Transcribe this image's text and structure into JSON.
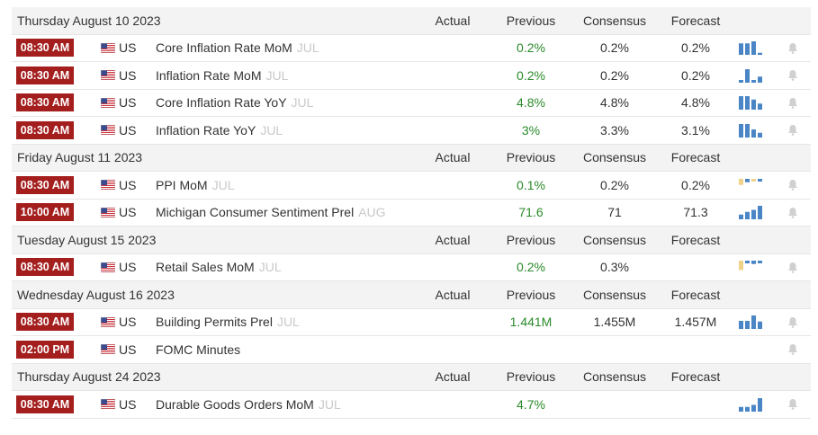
{
  "columns": {
    "actual": "Actual",
    "previous": "Previous",
    "consensus": "Consensus",
    "forecast": "Forecast"
  },
  "colors": {
    "time_badge": "#a41e1e",
    "previous_positive": "#2a8a2a",
    "bar_blue": "#4a86c5",
    "bar_yellow": "#f0d28a",
    "bell": "#d0d0d0"
  },
  "sections": [
    {
      "date": "Thursday August 10 2023",
      "events": [
        {
          "time": "08:30 AM",
          "country": "US",
          "flag_icon": "us-flag-icon",
          "name": "Core Inflation Rate MoM",
          "period": "JUL",
          "actual": "",
          "previous": "0.2%",
          "previous_colored": true,
          "consensus": "0.2%",
          "forecast": "0.2%",
          "spark": [
            {
              "v": 0.85,
              "c": "blue"
            },
            {
              "v": 0.85,
              "c": "blue"
            },
            {
              "v": 1.0,
              "c": "blue"
            },
            {
              "v": 0.15,
              "c": "blue"
            }
          ]
        },
        {
          "time": "08:30 AM",
          "country": "US",
          "flag_icon": "us-flag-icon",
          "name": "Inflation Rate MoM",
          "period": "JUL",
          "actual": "",
          "previous": "0.2%",
          "previous_colored": true,
          "consensus": "0.2%",
          "forecast": "0.2%",
          "spark": [
            {
              "v": 0.2,
              "c": "blue"
            },
            {
              "v": 1.0,
              "c": "blue"
            },
            {
              "v": 0.2,
              "c": "blue"
            },
            {
              "v": 0.45,
              "c": "blue"
            }
          ]
        },
        {
          "time": "08:30 AM",
          "country": "US",
          "flag_icon": "us-flag-icon",
          "name": "Core Inflation Rate YoY",
          "period": "JUL",
          "actual": "",
          "previous": "4.8%",
          "previous_colored": true,
          "consensus": "4.8%",
          "forecast": "4.8%",
          "spark": [
            {
              "v": 1.0,
              "c": "blue"
            },
            {
              "v": 1.0,
              "c": "blue"
            },
            {
              "v": 0.75,
              "c": "blue"
            },
            {
              "v": 0.45,
              "c": "blue"
            }
          ]
        },
        {
          "time": "08:30 AM",
          "country": "US",
          "flag_icon": "us-flag-icon",
          "name": "Inflation Rate YoY",
          "period": "JUL",
          "actual": "",
          "previous": "3%",
          "previous_colored": true,
          "consensus": "3.3%",
          "forecast": "3.1%",
          "spark": [
            {
              "v": 1.0,
              "c": "blue"
            },
            {
              "v": 1.0,
              "c": "blue"
            },
            {
              "v": 0.6,
              "c": "blue"
            },
            {
              "v": 0.35,
              "c": "blue"
            }
          ]
        }
      ]
    },
    {
      "date": "Friday August 11 2023",
      "events": [
        {
          "time": "08:30 AM",
          "country": "US",
          "flag_icon": "us-flag-icon",
          "name": "PPI MoM",
          "period": "JUL",
          "actual": "",
          "previous": "0.1%",
          "previous_colored": true,
          "consensus": "0.2%",
          "forecast": "0.2%",
          "spark": [
            {
              "v": 0.45,
              "c": "yellow",
              "top": true
            },
            {
              "v": 0.25,
              "c": "blue",
              "top": true
            },
            {
              "v": 0.2,
              "c": "yellow",
              "top": true
            },
            {
              "v": 0.2,
              "c": "blue",
              "top": true
            }
          ]
        },
        {
          "time": "10:00 AM",
          "country": "US",
          "flag_icon": "us-flag-icon",
          "name": "Michigan Consumer Sentiment Prel",
          "period": "AUG",
          "actual": "",
          "previous": "71.6",
          "previous_colored": true,
          "consensus": "71",
          "forecast": "71.3",
          "spark": [
            {
              "v": 0.35,
              "c": "blue"
            },
            {
              "v": 0.55,
              "c": "blue"
            },
            {
              "v": 0.7,
              "c": "blue"
            },
            {
              "v": 1.0,
              "c": "blue"
            }
          ]
        }
      ]
    },
    {
      "date": "Tuesday August 15 2023",
      "events": [
        {
          "time": "08:30 AM",
          "country": "US",
          "flag_icon": "us-flag-icon",
          "name": "Retail Sales MoM",
          "period": "JUL",
          "actual": "",
          "previous": "0.2%",
          "previous_colored": true,
          "consensus": "0.3%",
          "forecast": "",
          "spark": [
            {
              "v": 0.7,
              "c": "yellow",
              "top": true
            },
            {
              "v": 0.2,
              "c": "blue",
              "top": true
            },
            {
              "v": 0.25,
              "c": "blue",
              "top": true
            },
            {
              "v": 0.2,
              "c": "blue",
              "top": true
            }
          ]
        }
      ]
    },
    {
      "date": "Wednesday August 16 2023",
      "events": [
        {
          "time": "08:30 AM",
          "country": "US",
          "flag_icon": "us-flag-icon",
          "name": "Building Permits Prel",
          "period": "JUL",
          "actual": "",
          "previous": "1.441M",
          "previous_colored": true,
          "consensus": "1.455M",
          "forecast": "1.457M",
          "spark": [
            {
              "v": 0.6,
              "c": "blue"
            },
            {
              "v": 0.6,
              "c": "blue"
            },
            {
              "v": 1.0,
              "c": "blue"
            },
            {
              "v": 0.55,
              "c": "blue"
            }
          ]
        },
        {
          "time": "02:00 PM",
          "country": "US",
          "flag_icon": "us-flag-icon",
          "name": "FOMC Minutes",
          "period": "",
          "actual": "",
          "previous": "",
          "previous_colored": false,
          "consensus": "",
          "forecast": "",
          "spark": []
        }
      ]
    },
    {
      "date": "Thursday August 24 2023",
      "events": [
        {
          "time": "08:30 AM",
          "country": "US",
          "flag_icon": "us-flag-icon",
          "name": "Durable Goods Orders MoM",
          "period": "JUL",
          "actual": "",
          "previous": "4.7%",
          "previous_colored": true,
          "consensus": "",
          "forecast": "",
          "spark": [
            {
              "v": 0.35,
              "c": "blue"
            },
            {
              "v": 0.35,
              "c": "blue"
            },
            {
              "v": 0.5,
              "c": "blue"
            },
            {
              "v": 1.0,
              "c": "blue"
            }
          ]
        }
      ]
    }
  ]
}
